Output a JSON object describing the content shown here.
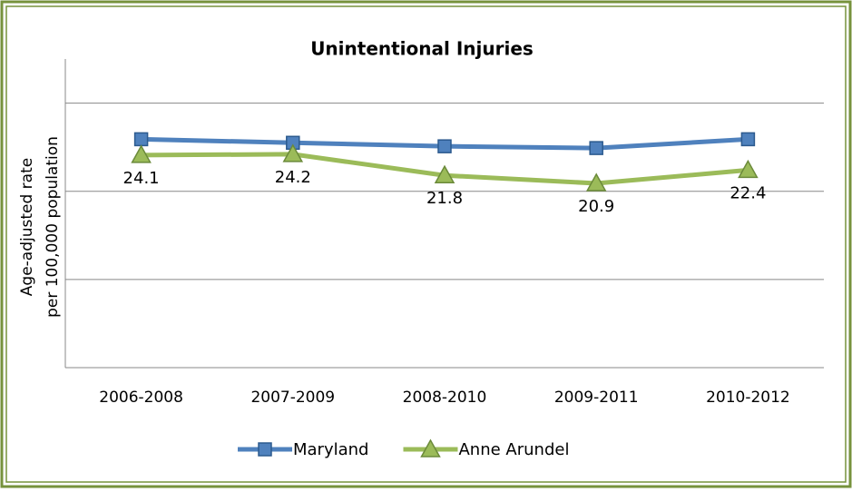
{
  "chart_data": {
    "type": "line",
    "title": "Unintentional Injuries",
    "y_label_lines": [
      "Age-adjusted rate",
      "per 100,000 population"
    ],
    "categories": [
      "2006-2008",
      "2007-2009",
      "2008-2010",
      "2009-2011",
      "2010-2012"
    ],
    "series": [
      {
        "name": "Maryland",
        "color": "#4f81bd",
        "marker": "square",
        "values": [
          25.9,
          25.5,
          25.1,
          24.9,
          25.9
        ]
      },
      {
        "name": "Anne Arundel",
        "color": "#9bbb59",
        "marker": "triangle",
        "values": [
          24.1,
          24.2,
          21.8,
          20.9,
          22.4
        ],
        "show_labels": true
      }
    ],
    "ylim": [
      0,
      35
    ],
    "yticks": [
      0,
      10,
      20,
      30
    ],
    "grid": true,
    "legend": "bottom"
  }
}
